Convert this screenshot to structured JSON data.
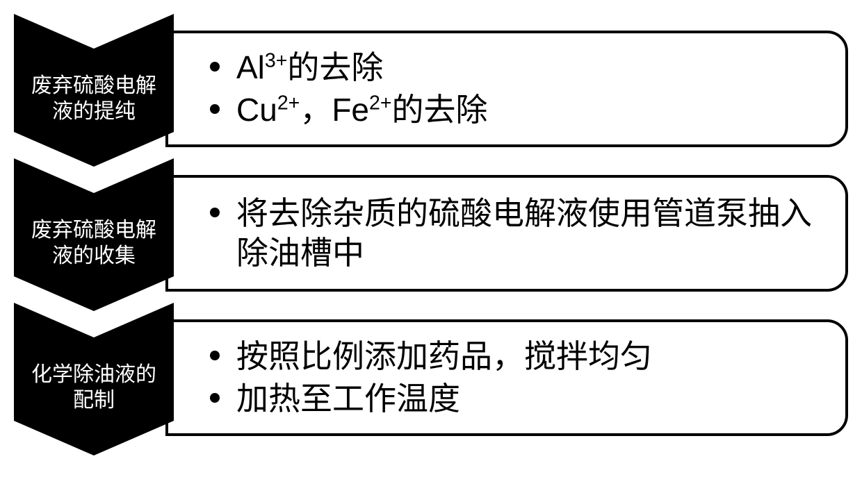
{
  "colors": {
    "chevron_fill": "#000000",
    "chevron_text": "#ffffff",
    "box_border": "#000000",
    "box_bg": "#ffffff",
    "text": "#000000",
    "bullet_fill": "#000000"
  },
  "layout": {
    "chevron_width": 230,
    "chevron_height": 220,
    "notch_depth": 50,
    "box_border_width": 4,
    "box_border_radius": 30,
    "label_fontsize": 30,
    "bullet_fontsize": 46,
    "bullet_dot_size": 14
  },
  "steps": [
    {
      "label": "废弃硫酸电解液的提纯",
      "bullets": [
        {
          "html": "Al<sup>3+</sup>的去除"
        },
        {
          "html": "Cu<sup>2+</sup>，Fe<sup>2+</sup>的去除"
        }
      ]
    },
    {
      "label": "废弃硫酸电解液的收集",
      "bullets": [
        {
          "text": "将去除杂质的硫酸电解液使用管道泵抽入除油槽中"
        }
      ]
    },
    {
      "label": "化学除油液的配制",
      "bullets": [
        {
          "text": "按照比例添加药品，搅拌均匀"
        },
        {
          "text": "加热至工作温度"
        }
      ]
    }
  ]
}
